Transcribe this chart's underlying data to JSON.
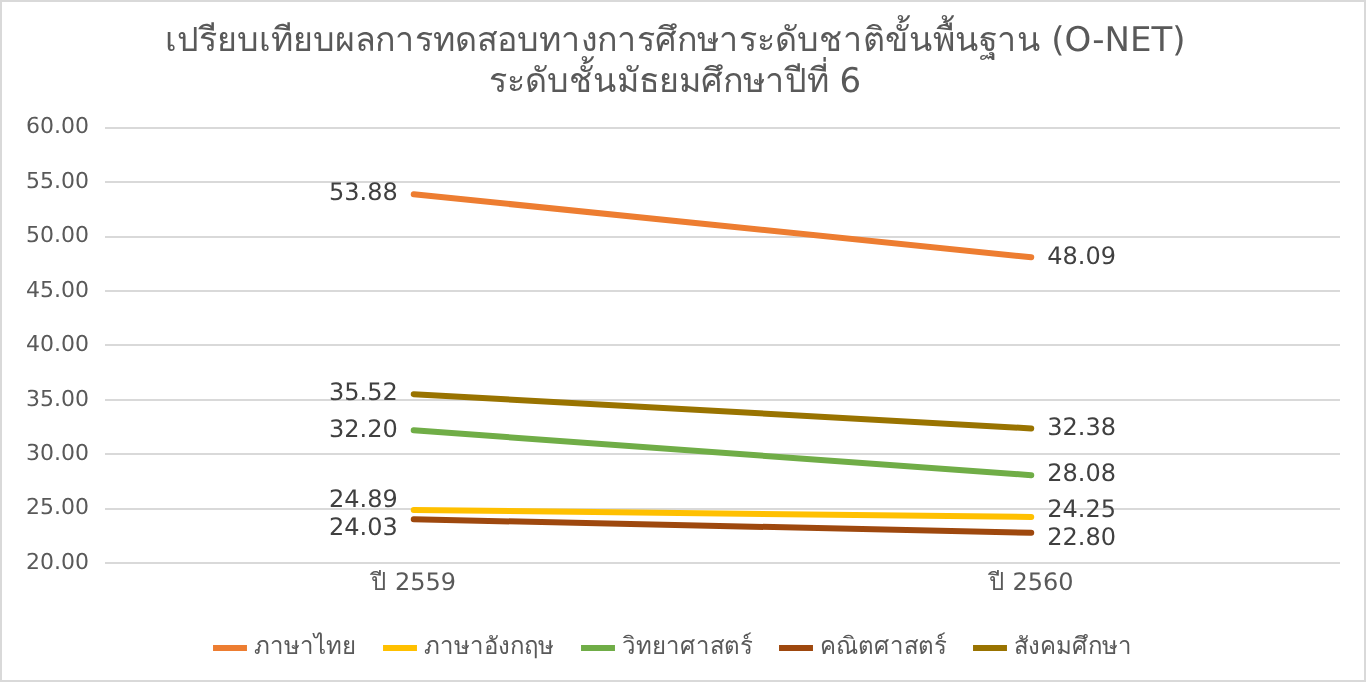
{
  "chart_data": {
    "type": "line",
    "title": "เปรียบเทียบผลการทดสอบทางการศึกษาระดับชาติขั้นพื้นฐาน (O-NET)",
    "subtitle": "ระดับชั้นมัธยมศึกษาปีที่ 6",
    "categories": [
      "ปี 2559",
      "ปี 2560"
    ],
    "series": [
      {
        "name": "ภาษาไทย",
        "color": "#ed7d31",
        "values": [
          53.88,
          48.09
        ]
      },
      {
        "name": "ภาษาอังกฤษ",
        "color": "#ffc000",
        "values": [
          24.89,
          24.25
        ]
      },
      {
        "name": "วิทยาศาสตร์",
        "color": "#70ad47",
        "values": [
          32.2,
          28.08
        ]
      },
      {
        "name": "คณิตศาสตร์",
        "color": "#9e480e",
        "values": [
          24.03,
          22.8
        ]
      },
      {
        "name": "สังคมศึกษา",
        "color": "#997300",
        "values": [
          35.52,
          32.38
        ]
      }
    ],
    "value_labels": [
      [
        "53.88",
        "48.09"
      ],
      [
        "24.89",
        "24.25"
      ],
      [
        "32.20",
        "28.08"
      ],
      [
        "24.03",
        "22.80"
      ],
      [
        "35.52",
        "32.38"
      ]
    ],
    "ylim": [
      20,
      60
    ],
    "yticks": [
      {
        "value": 20,
        "label": "20.00"
      },
      {
        "value": 25,
        "label": "25.00"
      },
      {
        "value": 30,
        "label": "30.00"
      },
      {
        "value": 35,
        "label": "35.00"
      },
      {
        "value": 40,
        "label": "40.00"
      },
      {
        "value": 45,
        "label": "45.00"
      },
      {
        "value": 50,
        "label": "50.00"
      },
      {
        "value": 55,
        "label": "55.00"
      },
      {
        "value": 60,
        "label": "60.00"
      }
    ],
    "grid": "y",
    "legend": "bottom",
    "marker": "none",
    "line_style": "solid"
  }
}
